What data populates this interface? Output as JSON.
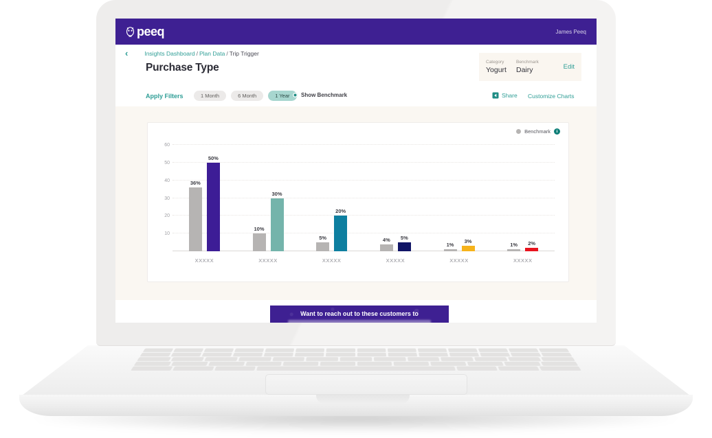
{
  "header": {
    "logo_text": "peeq",
    "user_name": "James Peeq"
  },
  "breadcrumb": {
    "separator": "/",
    "items": [
      {
        "label": "Insights Dashboard"
      },
      {
        "label": "Plan Data"
      },
      {
        "label": "Trip Trigger"
      }
    ]
  },
  "page": {
    "title": "Purchase Type"
  },
  "context_panel": {
    "category_label": "Category",
    "category_value": "Yogurt",
    "benchmark_label": "Benchmark",
    "benchmark_value": "Dairy",
    "edit_label": "Edit"
  },
  "toolbar": {
    "apply_filters_label": "Apply Filters",
    "time_filters": [
      {
        "label": "1 Month",
        "selected": false
      },
      {
        "label": "6 Month",
        "selected": false
      },
      {
        "label": "1 Year",
        "selected": true
      }
    ],
    "show_benchmark_label": "Show Benchmark",
    "share_label": "Share",
    "customize_label": "Customize Charts"
  },
  "chart": {
    "legend_label": "Benchmark",
    "info_glyph": "i"
  },
  "chart_data": {
    "type": "bar",
    "title": "Purchase Type",
    "categories": [
      "XXXXX",
      "XXXXX",
      "XXXXX",
      "XXXXX",
      "XXXXX",
      "XXXXX"
    ],
    "series": [
      {
        "name": "Benchmark",
        "values": [
          36,
          10,
          5,
          4,
          1,
          1
        ],
        "color": "#b6b4b3"
      },
      {
        "name": "Purchase Type",
        "values": [
          50,
          30,
          20,
          5,
          3,
          2
        ],
        "colors": [
          "#3d1d96",
          "#74b4ab",
          "#0e7fa0",
          "#111566",
          "#f6b31b",
          "#e8131d"
        ]
      }
    ],
    "ylim": [
      0,
      60
    ],
    "yticks": [
      10,
      20,
      30,
      40,
      50,
      60
    ],
    "value_suffix": "%",
    "grid": true,
    "legend_position": "top-right",
    "xlabel": "",
    "ylabel": ""
  },
  "banner": {
    "text": "Want to reach out to these customers to"
  },
  "icons": {
    "logo": "owl-icon",
    "back": "chevron-left-icon",
    "share": "share-icon",
    "info": "info-icon",
    "legend": "dot-icon"
  },
  "colors": {
    "brand_purple": "#3e2092",
    "accent_teal": "#2f9e96",
    "benchmark_gray": "#b6b4b3",
    "selected_pill_bg": "#a7d6cf",
    "page_beige": "#faf7f2"
  }
}
